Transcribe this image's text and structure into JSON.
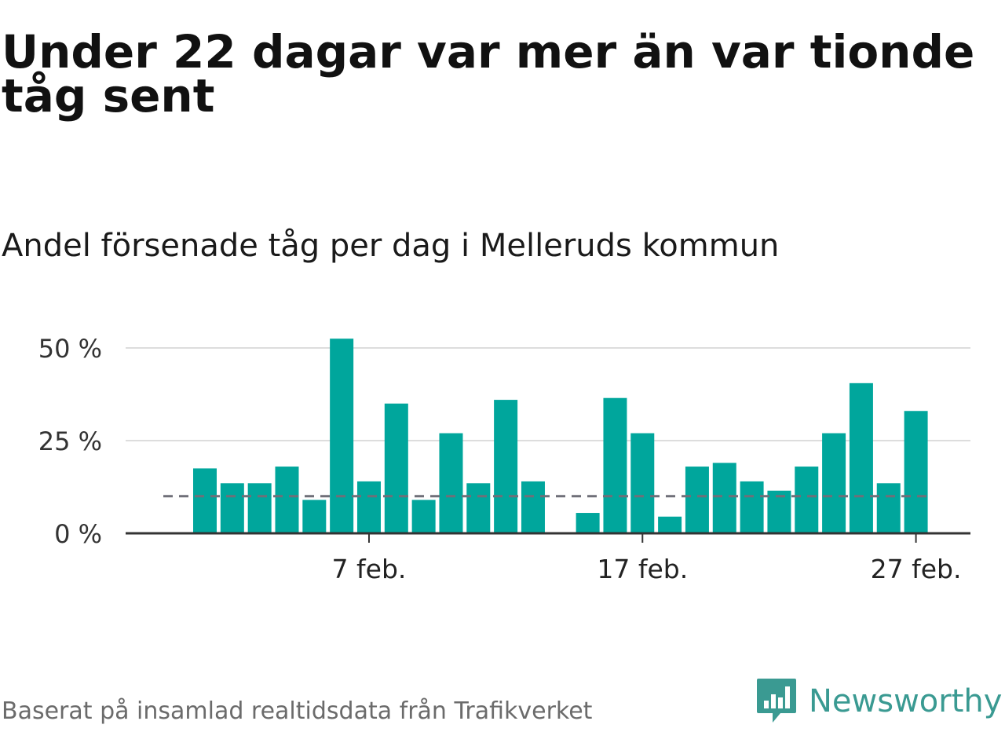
{
  "header": {
    "title": "Under 22 dagar var mer än var tionde tåg sent",
    "subtitle": "Andel försenade tåg per dag i Melleruds kommun"
  },
  "footer": {
    "source": "Baserat på insamlad realtidsdata från Trafikverket",
    "brand": "Newsworthy"
  },
  "colors": {
    "bar": "#00a69c",
    "reference_line": "#6f6f78",
    "grid": "#dddddd",
    "axis": "#333333",
    "brand": "#3a9a92"
  },
  "chart_data": {
    "type": "bar",
    "categories": [
      "1 feb.",
      "2 feb.",
      "3 feb.",
      "4 feb.",
      "5 feb.",
      "6 feb.",
      "7 feb.",
      "8 feb.",
      "9 feb.",
      "10 feb.",
      "11 feb.",
      "12 feb.",
      "13 feb.",
      "14 feb.",
      "15 feb.",
      "16 feb.",
      "17 feb.",
      "18 feb.",
      "19 feb.",
      "20 feb.",
      "21 feb.",
      "22 feb.",
      "23 feb.",
      "24 feb.",
      "25 feb.",
      "26 feb.",
      "27 feb.",
      "28 feb.",
      "29 feb."
    ],
    "values": [
      17.5,
      13.5,
      13.5,
      18,
      9,
      52.5,
      14,
      35,
      9,
      27,
      13.5,
      36,
      14,
      null,
      5.5,
      36.5,
      27,
      4.5,
      18,
      19,
      14,
      11.5,
      18,
      27,
      40.5,
      13.5,
      33,
      null,
      null
    ],
    "x_ticks": [
      {
        "category": "7 feb.",
        "label": "7 feb."
      },
      {
        "category": "17 feb.",
        "label": "17 feb."
      },
      {
        "category": "27 feb.",
        "label": "27 feb."
      }
    ],
    "y_ticks": [
      {
        "value": 0,
        "label": "0 %"
      },
      {
        "value": 25,
        "label": "25 %"
      },
      {
        "value": 50,
        "label": "50 %"
      }
    ],
    "reference_line": 10,
    "ylim": [
      0,
      55
    ],
    "grid": true,
    "title": "Andel försenade tåg per dag i Melleruds kommun",
    "xlabel": "",
    "ylabel": ""
  }
}
